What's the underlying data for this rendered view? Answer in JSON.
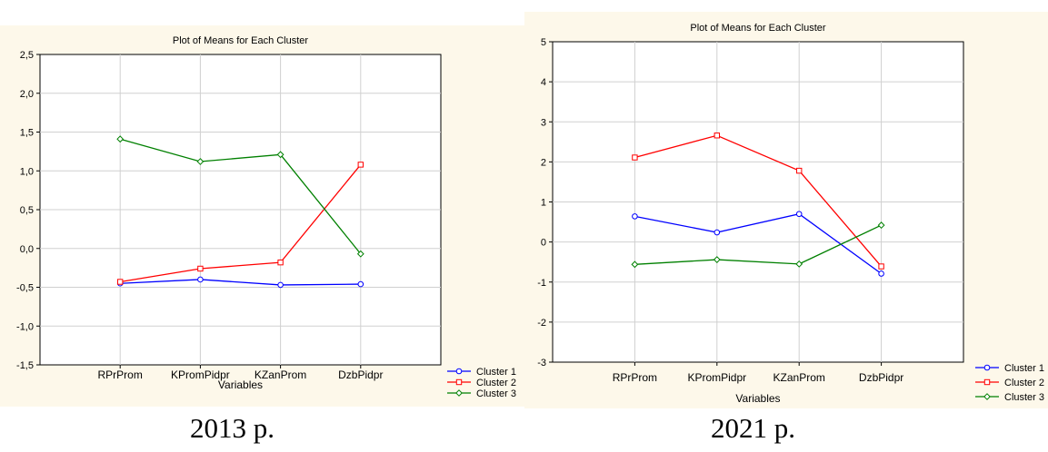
{
  "colors": {
    "panel_bg": "#fdf8ea",
    "plot_bg": "#ffffff",
    "grid": "#d0d0d0",
    "cluster1": "#0000ff",
    "cluster2": "#ff0000",
    "cluster3": "#008000"
  },
  "chart_data": [
    {
      "type": "line",
      "title": "Plot of Means for Each Cluster",
      "xlabel": "Variables",
      "ylabel": "",
      "caption": "2013 р.",
      "categories": [
        "RPrProm",
        "KPromPidpr",
        "KZanProm",
        "DzbPidpr"
      ],
      "ylim": [
        -1.5,
        2.5
      ],
      "yticks": [
        "2,5",
        "2,0",
        "1,5",
        "1,0",
        "0,5",
        "0,0",
        "-0,5",
        "-1,0",
        "-1,5"
      ],
      "ytick_values": [
        2.5,
        2.0,
        1.5,
        1.0,
        0.5,
        0.0,
        -0.5,
        -1.0,
        -1.5
      ],
      "grid": true,
      "legend_position": "bottom-right",
      "series": [
        {
          "name": "Cluster  1",
          "marker": "circle",
          "values": [
            -0.45,
            -0.4,
            -0.47,
            -0.46
          ]
        },
        {
          "name": "Cluster  2",
          "marker": "square",
          "values": [
            -0.43,
            -0.26,
            -0.18,
            1.08
          ]
        },
        {
          "name": "Cluster  3",
          "marker": "diamond",
          "values": [
            1.41,
            1.12,
            1.21,
            -0.07
          ]
        }
      ]
    },
    {
      "type": "line",
      "title": "Plot of Means for Each Cluster",
      "xlabel": "Variables",
      "ylabel": "",
      "caption": "2021 р.",
      "categories": [
        "RPrProm",
        "KPromPidpr",
        "KZanProm",
        "DzbPidpr"
      ],
      "ylim": [
        -3,
        5
      ],
      "yticks": [
        "5",
        "4",
        "3",
        "2",
        "1",
        "0",
        "-1",
        "-2",
        "-3"
      ],
      "ytick_values": [
        5,
        4,
        3,
        2,
        1,
        0,
        -1,
        -2,
        -3
      ],
      "grid": true,
      "legend_position": "bottom-right",
      "series": [
        {
          "name": "Cluster  1",
          "marker": "circle",
          "values": [
            0.64,
            0.24,
            0.7,
            -0.79
          ]
        },
        {
          "name": "Cluster  2",
          "marker": "square",
          "values": [
            2.11,
            2.66,
            1.78,
            -0.61
          ]
        },
        {
          "name": "Cluster  3",
          "marker": "diamond",
          "values": [
            -0.56,
            -0.44,
            -0.55,
            0.42
          ]
        }
      ]
    }
  ]
}
